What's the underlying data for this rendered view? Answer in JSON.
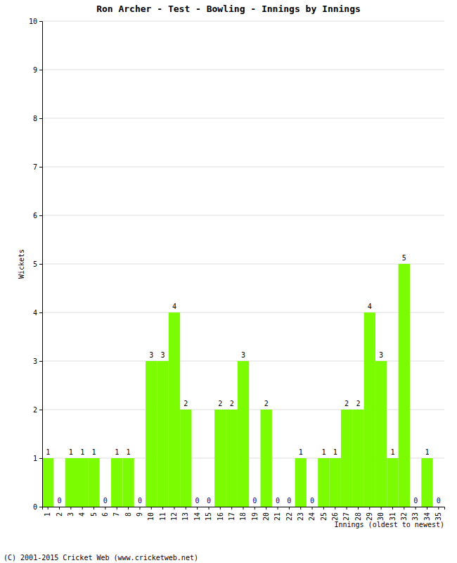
{
  "chart_data": {
    "type": "bar",
    "title": "Ron Archer - Test - Bowling - Innings by Innings",
    "x_label": "Innings (oldest to newest)",
    "y_label": "Wickets",
    "annotations": [
      "(C) 2001-2015 Cricket Web (www.cricketweb.net)"
    ],
    "categories": [
      "1",
      "2",
      "3",
      "4",
      "5",
      "6",
      "7",
      "8",
      "9",
      "10",
      "11",
      "12",
      "13",
      "14",
      "15",
      "16",
      "17",
      "18",
      "19",
      "20",
      "21",
      "22",
      "23",
      "24",
      "25",
      "26",
      "27",
      "28",
      "29",
      "30",
      "31",
      "32",
      "33",
      "34",
      "35"
    ],
    "values": [
      1,
      0,
      1,
      1,
      1,
      0,
      1,
      1,
      0,
      3,
      3,
      4,
      2,
      0,
      0,
      2,
      2,
      3,
      0,
      2,
      0,
      0,
      1,
      0,
      1,
      1,
      2,
      2,
      4,
      3,
      1,
      5,
      0,
      1,
      0
    ],
    "color": "#7cfc00",
    "ylim": [
      0,
      10
    ],
    "yticks": [
      0,
      1,
      2,
      3,
      4,
      5,
      6,
      7,
      8,
      9,
      10
    ],
    "grid": true,
    "data_labels": true
  }
}
